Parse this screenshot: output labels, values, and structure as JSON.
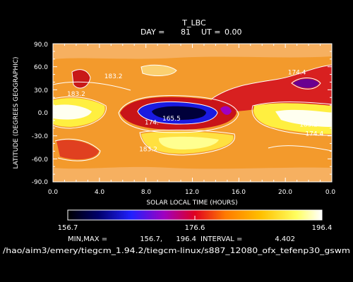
{
  "chart_data": {
    "type": "heatmap",
    "title": "T_LBC",
    "subtitle": {
      "day_label": "DAY =",
      "day": "81",
      "ut_label": "UT =",
      "ut": "0.00"
    },
    "xlabel": "SOLAR LOCAL TIME (HOURS)",
    "ylabel": "LATITUDE (DEGREES GEOGRAPHIC)",
    "xlim": [
      0,
      24
    ],
    "ylim": [
      -90,
      90
    ],
    "x_ticks": [
      "0.0",
      "4.0",
      "8.0",
      "12.0",
      "16.0",
      "20.0",
      "0.0"
    ],
    "y_ticks": [
      "90.0",
      "60.0",
      "30.0",
      "0.0",
      "-30.0",
      "-60.0",
      "-90.0"
    ],
    "colorbar": {
      "min_label": "156.7",
      "mid_label": "176.6",
      "max_label": "196.4",
      "min": 156.7,
      "max": 196.4
    },
    "contour_labels": [
      {
        "text": "183.2",
        "x": 5.2,
        "y": 45
      },
      {
        "text": "183.2",
        "x": 2.0,
        "y": 22
      },
      {
        "text": "174.4",
        "x": 21.0,
        "y": 50
      },
      {
        "text": "165.5",
        "x": 10.2,
        "y": -10
      },
      {
        "text": "174.",
        "x": 8.5,
        "y": -15
      },
      {
        "text": "183.2",
        "x": 22.0,
        "y": -18
      },
      {
        "text": "174.4",
        "x": 22.5,
        "y": -30
      },
      {
        "text": "183.2",
        "x": 8.2,
        "y": -50
      }
    ],
    "stats": {
      "minmax_label": "MIN,MAX =",
      "min": "156.7,",
      "max": "196.4",
      "interval_label": "INTERVAL =",
      "interval": "4.402"
    },
    "path": "/hao/aim3/emery/tiegcm_1.94.2/tiegcm-linux/s887_12080_ofx_tefenp30_gswm"
  }
}
